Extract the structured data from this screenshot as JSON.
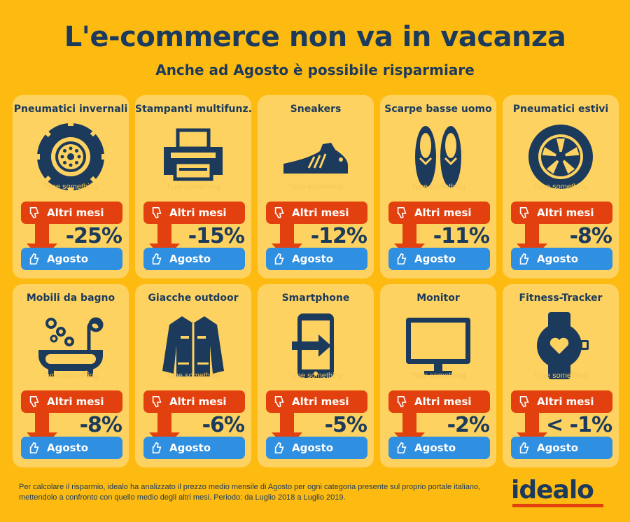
{
  "header": {
    "title": "L'e-commerce non va in vacanza",
    "subtitle": "Anche ad Agosto è possibile risparmiare"
  },
  "labels": {
    "other_months": "Altri mesi",
    "august": "Agosto",
    "placeholder": "Type something"
  },
  "cards": [
    {
      "title": "Pneumatici invernali",
      "value": "-25%",
      "icon": "winter-tire-icon"
    },
    {
      "title": "Stampanti multifunz.",
      "value": "-15%",
      "icon": "printer-icon"
    },
    {
      "title": "Sneakers",
      "value": "-12%",
      "icon": "sneaker-icon"
    },
    {
      "title": "Scarpe basse uomo",
      "value": "-11%",
      "icon": "men-shoes-icon"
    },
    {
      "title": "Pneumatici estivi",
      "value": "-8%",
      "icon": "summer-tire-icon"
    },
    {
      "title": "Mobili da bagno",
      "value": "-8%",
      "icon": "bathtub-icon"
    },
    {
      "title": "Giacche outdoor",
      "value": "-6%",
      "icon": "jacket-icon"
    },
    {
      "title": "Smartphone",
      "value": "-5%",
      "icon": "smartphone-icon"
    },
    {
      "title": "Monitor",
      "value": "-2%",
      "icon": "monitor-icon"
    },
    {
      "title": "Fitness-Tracker",
      "value": "< -1%",
      "icon": "fitness-tracker-icon"
    }
  ],
  "footnote": "Per calcolare il risparmio, idealo ha analizzato il prezzo medio mensile di Agosto per ogni categoria presente sul proprio portale italiano, mettendolo a confronto con quello medio degli altri mesi. Periodo: da Luglio 2018 a Luglio 2019.",
  "logo": "idealo",
  "colors": {
    "background": "#FDBA11",
    "card": "#FDD261",
    "red": "#E2410F",
    "blue": "#2F8FE0",
    "navy": "#1B3A5C"
  }
}
